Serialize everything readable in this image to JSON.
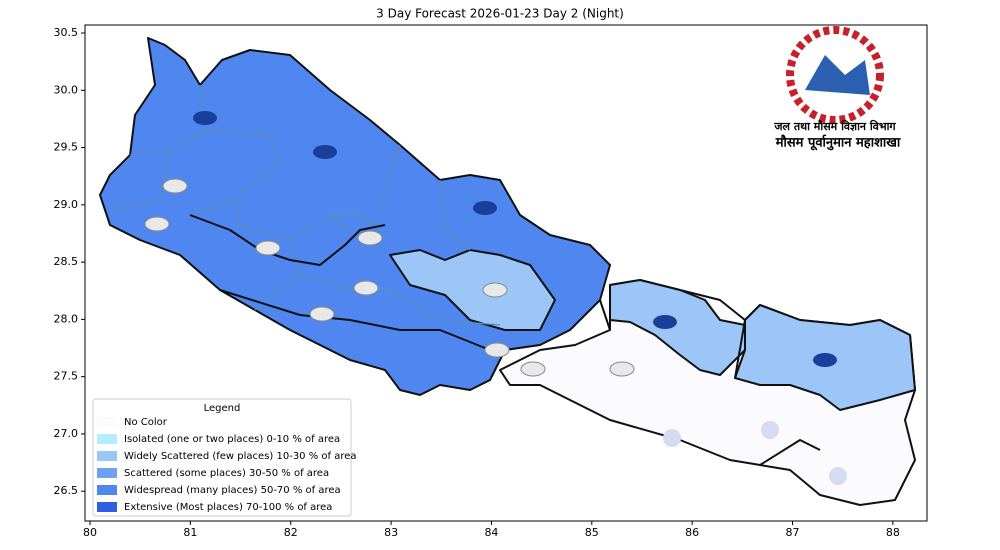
{
  "title": "3 Day Forecast 2026-01-23 Day 2 (Night)",
  "axes": {
    "xlim": [
      79.95,
      88.34
    ],
    "ylim": [
      26.24,
      30.57
    ],
    "xticks": [
      80,
      81,
      82,
      83,
      84,
      85,
      86,
      87,
      88
    ],
    "yticks": [
      {
        "value": 26.5,
        "label": "26.5"
      },
      {
        "value": 27,
        "label": "27.0"
      },
      {
        "value": 27.5,
        "label": "27.5"
      },
      {
        "value": 28,
        "label": "28.0"
      },
      {
        "value": 28.5,
        "label": "28.5"
      },
      {
        "value": 29,
        "label": "29.0"
      },
      {
        "value": 29.5,
        "label": "29.5"
      },
      {
        "value": 30,
        "label": "30.0"
      },
      {
        "value": 30.5,
        "label": "30.5"
      }
    ]
  },
  "legend": {
    "title": "Legend",
    "items": [
      {
        "label": "No Color",
        "color": "#fbfbfd"
      },
      {
        "label": "Isolated (one or two places)  0-10 % of area",
        "color": "#b5ebfa"
      },
      {
        "label": "Widely Scattered (few places)  10-30 % of area",
        "color": "#9cc6f7"
      },
      {
        "label": "Scattered (some places)  30-50 % of area",
        "color": "#6fa1f2"
      },
      {
        "label": "Widespread (many places)  50-70 % of area",
        "color": "#4f86ef"
      },
      {
        "label": "Extensive (Most places)  70-100 % of area",
        "color": "#2d5fe0"
      }
    ]
  },
  "logo": {
    "line1": "जल तथा मौसम विज्ञान विभाग",
    "line2": "मौसम पूर्वानुमान महाशाखा"
  }
}
